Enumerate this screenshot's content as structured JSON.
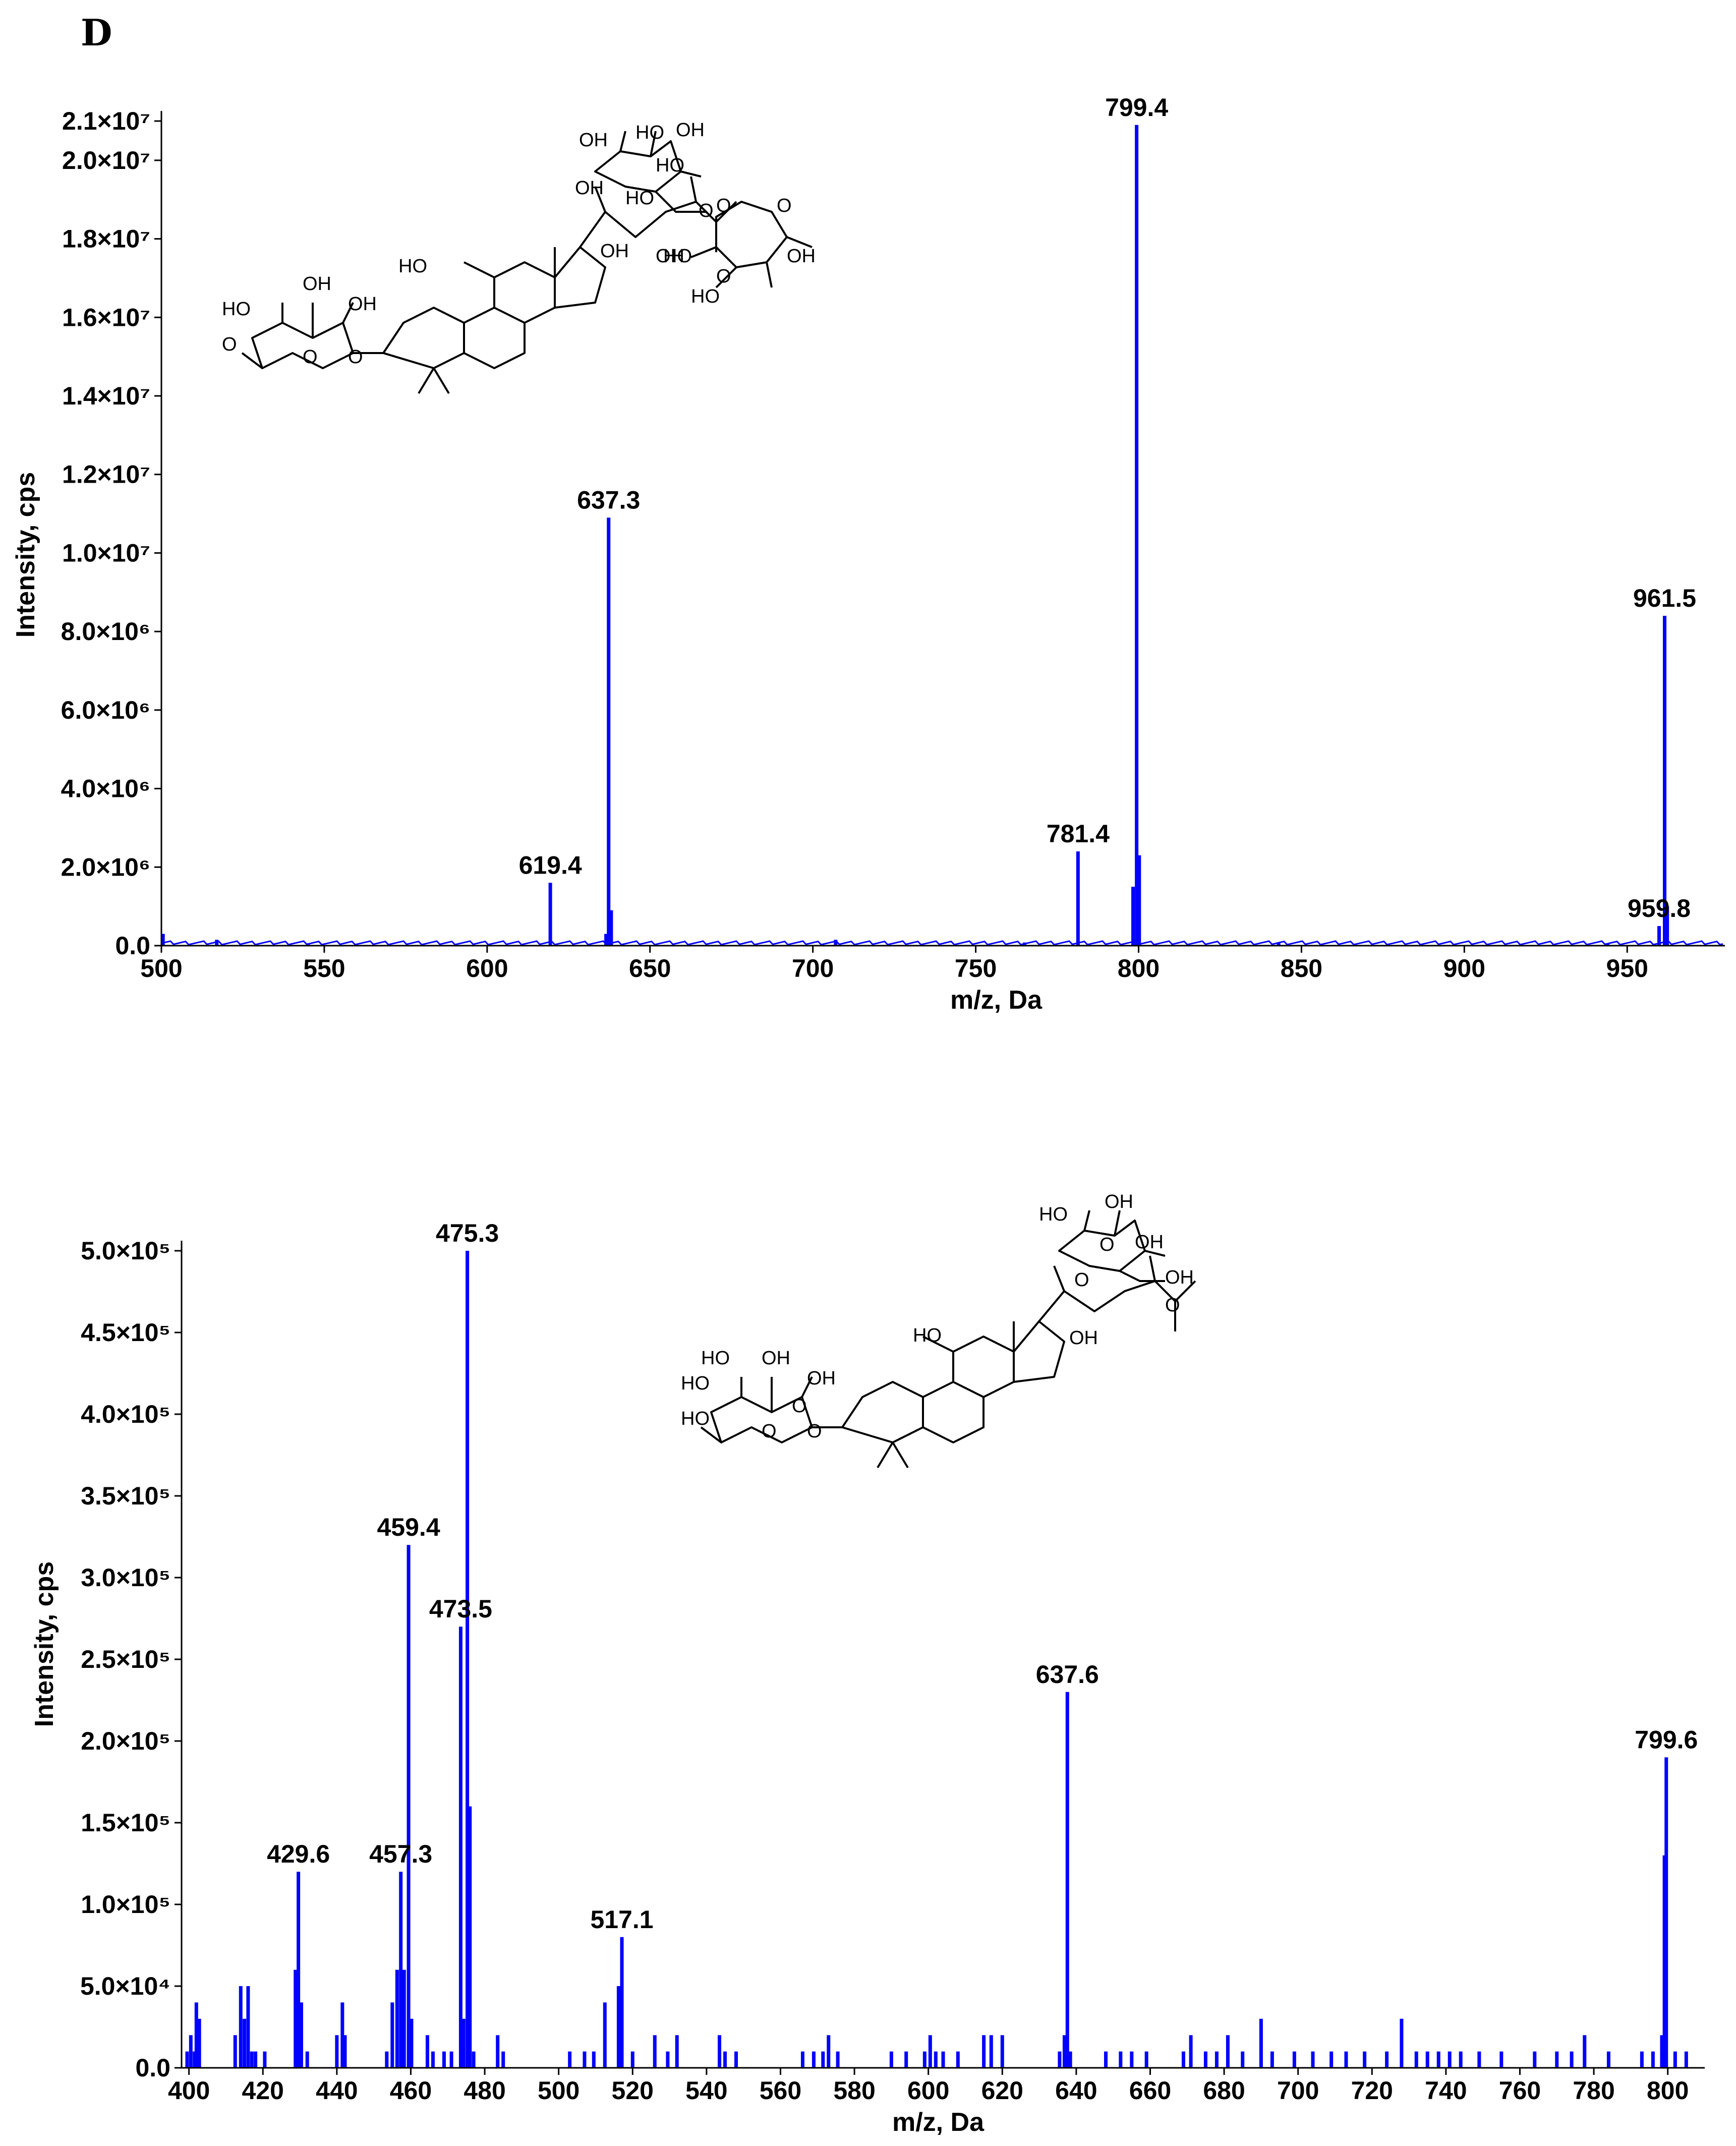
{
  "panel_label": "D",
  "colors": {
    "series": "#0000ff",
    "axis": "#000000"
  },
  "chart_data": [
    {
      "type": "line",
      "subtype": "mass-spectrum",
      "title": "",
      "xlabel": "m/z, Da",
      "ylabel": "Intensity, cps",
      "xlim": [
        500,
        980
      ],
      "ylim": [
        0,
        21000000
      ],
      "xticks": [
        500,
        550,
        600,
        650,
        700,
        750,
        800,
        850,
        900,
        950
      ],
      "xtick_labels": [
        "500",
        "550",
        "600",
        "650",
        "700",
        "750",
        "800",
        "850",
        "900",
        "950"
      ],
      "yticks": [
        0,
        2000000,
        4000000,
        6000000,
        8000000,
        10000000,
        12000000,
        14000000,
        16000000,
        18000000,
        20000000,
        21000000
      ],
      "ytick_labels": [
        "0.0",
        "2.0×10⁶",
        "4.0×10⁶",
        "6.0×10⁶",
        "8.0×10⁶",
        "1.0×10⁷",
        "1.2×10⁷",
        "1.4×10⁷",
        "1.6×10⁷",
        "1.8×10⁷",
        "2.0×10⁷",
        "2.1×10⁷"
      ],
      "grid": false,
      "peaks": [
        {
          "x": 500.5,
          "y": 300000
        },
        {
          "x": 517,
          "y": 150000
        },
        {
          "x": 545,
          "y": 60000
        },
        {
          "x": 619.4,
          "y": 1600000,
          "label": "619.4"
        },
        {
          "x": 636.5,
          "y": 300000
        },
        {
          "x": 637.3,
          "y": 10900000,
          "label": "637.3"
        },
        {
          "x": 638.1,
          "y": 900000
        },
        {
          "x": 707,
          "y": 150000
        },
        {
          "x": 765,
          "y": 80000
        },
        {
          "x": 781.4,
          "y": 2400000,
          "label": "781.4"
        },
        {
          "x": 798.3,
          "y": 1500000
        },
        {
          "x": 799.4,
          "y": 20900000,
          "label": "799.4"
        },
        {
          "x": 800.2,
          "y": 2300000
        },
        {
          "x": 843,
          "y": 60000
        },
        {
          "x": 944,
          "y": 60000
        },
        {
          "x": 959.8,
          "y": 500000,
          "label": "959.8"
        },
        {
          "x": 961.5,
          "y": 8400000,
          "label": "961.5"
        },
        {
          "x": 962.3,
          "y": 1000000
        }
      ]
    },
    {
      "type": "bar",
      "subtype": "mass-spectrum",
      "title": "",
      "xlabel": "m/z, Da",
      "ylabel": "Intensity, cps",
      "xlim": [
        398,
        810
      ],
      "ylim": [
        0,
        500000
      ],
      "xticks": [
        400,
        420,
        440,
        460,
        480,
        500,
        520,
        540,
        560,
        580,
        600,
        620,
        640,
        660,
        680,
        700,
        720,
        740,
        760,
        780,
        800
      ],
      "xtick_labels": [
        "400",
        "420",
        "440",
        "460",
        "480",
        "500",
        "520",
        "540",
        "560",
        "580",
        "600",
        "620",
        "640",
        "660",
        "680",
        "700",
        "720",
        "740",
        "760",
        "780",
        "800"
      ],
      "yticks": [
        0,
        50000,
        100000,
        150000,
        200000,
        250000,
        300000,
        350000,
        400000,
        450000,
        500000
      ],
      "ytick_labels": [
        "0.0",
        "5.0×10⁴",
        "1.0×10⁵",
        "1.5×10⁵",
        "2.0×10⁵",
        "2.5×10⁵",
        "3.0×10⁵",
        "3.5×10⁵",
        "4.0×10⁵",
        "4.5×10⁵",
        "5.0×10⁵"
      ],
      "grid": false,
      "peaks": [
        {
          "x": 399.5,
          "y": 10000
        },
        {
          "x": 400.5,
          "y": 20000
        },
        {
          "x": 401.5,
          "y": 10000
        },
        {
          "x": 402,
          "y": 40000
        },
        {
          "x": 402.8,
          "y": 30000
        },
        {
          "x": 412.5,
          "y": 20000
        },
        {
          "x": 414,
          "y": 50000
        },
        {
          "x": 415,
          "y": 30000
        },
        {
          "x": 416,
          "y": 50000
        },
        {
          "x": 417,
          "y": 10000
        },
        {
          "x": 418,
          "y": 10000
        },
        {
          "x": 420.5,
          "y": 10000
        },
        {
          "x": 428.8,
          "y": 60000
        },
        {
          "x": 429.6,
          "y": 120000,
          "label": "429.6"
        },
        {
          "x": 430.4,
          "y": 40000
        },
        {
          "x": 432,
          "y": 10000
        },
        {
          "x": 440,
          "y": 20000
        },
        {
          "x": 441.5,
          "y": 40000
        },
        {
          "x": 442.2,
          "y": 20000
        },
        {
          "x": 453.5,
          "y": 10000
        },
        {
          "x": 455,
          "y": 40000
        },
        {
          "x": 456.3,
          "y": 60000
        },
        {
          "x": 457.3,
          "y": 120000,
          "label": "457.3"
        },
        {
          "x": 458.2,
          "y": 60000
        },
        {
          "x": 459.4,
          "y": 320000,
          "label": "459.4"
        },
        {
          "x": 460.2,
          "y": 30000
        },
        {
          "x": 464.5,
          "y": 20000
        },
        {
          "x": 466,
          "y": 10000
        },
        {
          "x": 469,
          "y": 10000
        },
        {
          "x": 471,
          "y": 10000
        },
        {
          "x": 473.5,
          "y": 270000,
          "label": "473.5"
        },
        {
          "x": 474.3,
          "y": 30000
        },
        {
          "x": 475.3,
          "y": 500000,
          "label": "475.3"
        },
        {
          "x": 476,
          "y": 160000
        },
        {
          "x": 477,
          "y": 10000
        },
        {
          "x": 483.5,
          "y": 20000
        },
        {
          "x": 485,
          "y": 10000
        },
        {
          "x": 503,
          "y": 10000
        },
        {
          "x": 507,
          "y": 10000
        },
        {
          "x": 509.5,
          "y": 10000
        },
        {
          "x": 512.5,
          "y": 40000
        },
        {
          "x": 516.2,
          "y": 50000
        },
        {
          "x": 517.1,
          "y": 80000,
          "label": "517.1"
        },
        {
          "x": 520,
          "y": 10000
        },
        {
          "x": 526,
          "y": 20000
        },
        {
          "x": 529.5,
          "y": 10000
        },
        {
          "x": 532,
          "y": 20000
        },
        {
          "x": 543.5,
          "y": 20000
        },
        {
          "x": 545,
          "y": 10000
        },
        {
          "x": 548,
          "y": 10000
        },
        {
          "x": 566,
          "y": 10000
        },
        {
          "x": 569,
          "y": 10000
        },
        {
          "x": 571.5,
          "y": 10000
        },
        {
          "x": 573,
          "y": 20000
        },
        {
          "x": 575.5,
          "y": 10000
        },
        {
          "x": 590,
          "y": 10000
        },
        {
          "x": 594,
          "y": 10000
        },
        {
          "x": 599,
          "y": 10000
        },
        {
          "x": 600.5,
          "y": 20000
        },
        {
          "x": 602,
          "y": 10000
        },
        {
          "x": 604,
          "y": 10000
        },
        {
          "x": 608,
          "y": 10000
        },
        {
          "x": 615,
          "y": 20000
        },
        {
          "x": 617,
          "y": 20000
        },
        {
          "x": 620,
          "y": 20000
        },
        {
          "x": 635.5,
          "y": 10000
        },
        {
          "x": 636.8,
          "y": 20000
        },
        {
          "x": 637.6,
          "y": 230000,
          "label": "637.6"
        },
        {
          "x": 638.4,
          "y": 10000
        },
        {
          "x": 648,
          "y": 10000
        },
        {
          "x": 652,
          "y": 10000
        },
        {
          "x": 655,
          "y": 10000
        },
        {
          "x": 659,
          "y": 10000
        },
        {
          "x": 669,
          "y": 10000
        },
        {
          "x": 671,
          "y": 20000
        },
        {
          "x": 675,
          "y": 10000
        },
        {
          "x": 678,
          "y": 10000
        },
        {
          "x": 681,
          "y": 20000
        },
        {
          "x": 685,
          "y": 10000
        },
        {
          "x": 690,
          "y": 30000
        },
        {
          "x": 693,
          "y": 10000
        },
        {
          "x": 699,
          "y": 10000
        },
        {
          "x": 704,
          "y": 10000
        },
        {
          "x": 709,
          "y": 10000
        },
        {
          "x": 713,
          "y": 10000
        },
        {
          "x": 718,
          "y": 10000
        },
        {
          "x": 724,
          "y": 10000
        },
        {
          "x": 728,
          "y": 30000
        },
        {
          "x": 732,
          "y": 10000
        },
        {
          "x": 735,
          "y": 10000
        },
        {
          "x": 738,
          "y": 10000
        },
        {
          "x": 741,
          "y": 10000
        },
        {
          "x": 744,
          "y": 10000
        },
        {
          "x": 749,
          "y": 10000
        },
        {
          "x": 755,
          "y": 10000
        },
        {
          "x": 764,
          "y": 10000
        },
        {
          "x": 770,
          "y": 10000
        },
        {
          "x": 774,
          "y": 10000
        },
        {
          "x": 777.5,
          "y": 20000
        },
        {
          "x": 784,
          "y": 10000
        },
        {
          "x": 793,
          "y": 10000
        },
        {
          "x": 796,
          "y": 10000
        },
        {
          "x": 798.4,
          "y": 20000
        },
        {
          "x": 799.1,
          "y": 130000
        },
        {
          "x": 799.6,
          "y": 190000,
          "label": "799.6"
        },
        {
          "x": 802,
          "y": 10000
        },
        {
          "x": 805,
          "y": 10000
        }
      ]
    }
  ],
  "structures": {
    "top": {
      "labels": [
        "HO",
        "OH",
        "OH",
        "O",
        "O",
        "O",
        "OH",
        "OH",
        "HO",
        "HO",
        "OH",
        "HO",
        "OH",
        "OH",
        "O",
        "HO",
        "O",
        "O",
        "O",
        "HO",
        "HO",
        "OH"
      ]
    },
    "bottom": {
      "labels": [
        "HO",
        "OH",
        "OH",
        "O",
        "O",
        "OH",
        "OH",
        "HO",
        "HO",
        "OH",
        "OH",
        "O",
        "HO",
        "O",
        "O",
        "HO",
        "O"
      ]
    }
  }
}
